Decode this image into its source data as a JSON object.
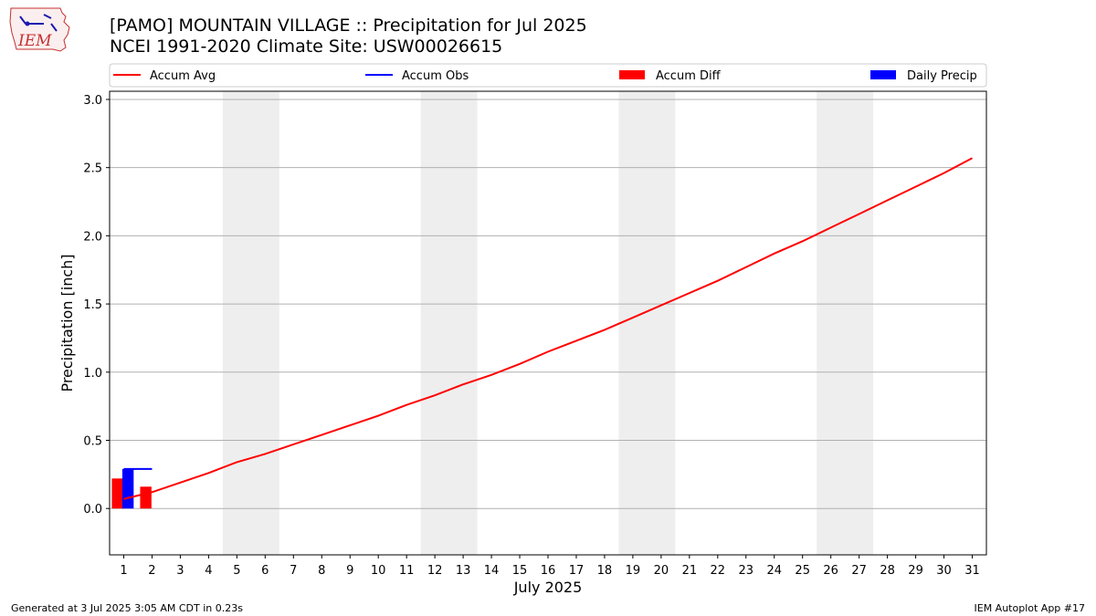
{
  "header": {
    "title_line1": "[PAMO] MOUNTAIN VILLAGE :: Precipitation for Jul 2025",
    "title_line2": "NCEI 1991-2020 Climate Site: USW00026615",
    "logo_text": "IEM"
  },
  "footer": {
    "left": "Generated at 3 Jul 2025 3:05 AM CDT in 0.23s",
    "right": "IEM Autoplot App #17"
  },
  "chart_data": {
    "type": "line",
    "xlabel": "July 2025",
    "ylabel": "Precipitation [inch]",
    "ylim": [
      -0.34,
      3.06
    ],
    "xlim": [
      0.5,
      31.5
    ],
    "yticks": [
      0.0,
      0.5,
      1.0,
      1.5,
      2.0,
      2.5,
      3.0
    ],
    "ytick_labels": [
      "0.0",
      "0.5",
      "1.0",
      "1.5",
      "2.0",
      "2.5",
      "3.0"
    ],
    "categories": [
      "1",
      "2",
      "3",
      "4",
      "5",
      "6",
      "7",
      "8",
      "9",
      "10",
      "11",
      "12",
      "13",
      "14",
      "15",
      "16",
      "17",
      "18",
      "19",
      "20",
      "21",
      "22",
      "23",
      "24",
      "25",
      "26",
      "27",
      "28",
      "29",
      "30",
      "31"
    ],
    "grid": "horizontal",
    "weekend_shading": [
      [
        4.5,
        6.5
      ],
      [
        11.5,
        13.5
      ],
      [
        18.5,
        20.5
      ],
      [
        25.5,
        27.5
      ]
    ],
    "legend_position": "top",
    "legend": [
      {
        "name": "Accum Avg",
        "kind": "line",
        "color": "#ff0000"
      },
      {
        "name": "Accum Obs",
        "kind": "line",
        "color": "#0000ff"
      },
      {
        "name": "Accum Diff",
        "kind": "bar",
        "color": "#ff0000"
      },
      {
        "name": "Daily Precip",
        "kind": "bar",
        "color": "#0000ff"
      }
    ],
    "series": [
      {
        "name": "Accum Avg",
        "kind": "line",
        "color": "#ff0000",
        "x": [
          1,
          2,
          3,
          4,
          5,
          6,
          7,
          8,
          9,
          10,
          11,
          12,
          13,
          14,
          15,
          16,
          17,
          18,
          19,
          20,
          21,
          22,
          23,
          24,
          25,
          26,
          27,
          28,
          29,
          30,
          31
        ],
        "values": [
          0.07,
          0.12,
          0.19,
          0.26,
          0.34,
          0.4,
          0.47,
          0.54,
          0.61,
          0.68,
          0.76,
          0.83,
          0.91,
          0.98,
          1.06,
          1.15,
          1.23,
          1.31,
          1.4,
          1.49,
          1.58,
          1.67,
          1.77,
          1.87,
          1.96,
          2.06,
          2.16,
          2.26,
          2.36,
          2.46,
          2.57
        ]
      },
      {
        "name": "Accum Obs",
        "kind": "step",
        "color": "#0000ff",
        "x": [
          1,
          2
        ],
        "values": [
          0.29,
          0.29
        ]
      },
      {
        "name": "Accum Diff",
        "kind": "bar",
        "color": "#ff0000",
        "x": [
          1,
          2
        ],
        "values": [
          0.22,
          0.16
        ]
      },
      {
        "name": "Daily Precip",
        "kind": "bar",
        "color": "#0000ff",
        "x": [
          1
        ],
        "values": [
          0.29
        ]
      }
    ]
  }
}
